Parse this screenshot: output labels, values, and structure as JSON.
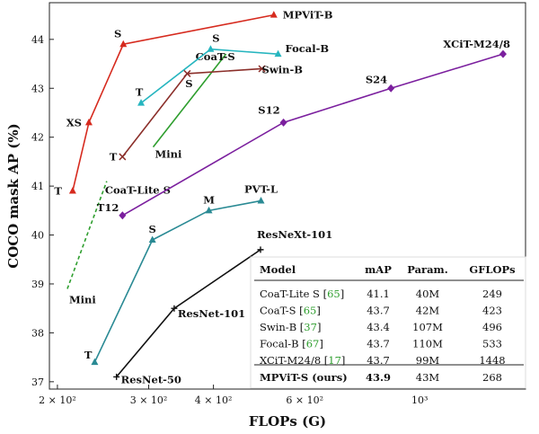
{
  "chart_data": {
    "type": "line",
    "xlabel": "FLOPs (G)",
    "ylabel": "COCO mask AP (%)",
    "xscale": "log",
    "xlim": [
      193,
      1600
    ],
    "ylim": [
      36.85,
      44.75
    ],
    "x_ticks": [
      {
        "value": 200,
        "label": "2 × 10²"
      },
      {
        "value": 300,
        "label": "3 × 10²"
      },
      {
        "value": 400,
        "label": "4 × 10²"
      },
      {
        "value": 600,
        "label": "6 × 10²"
      },
      {
        "value": 1000,
        "label": "10³"
      }
    ],
    "y_ticks": [
      37,
      38,
      39,
      40,
      41,
      42,
      43,
      44
    ],
    "series": [
      {
        "name": "MPViT",
        "color": "#d62a1e",
        "marker": "triangle",
        "dashed": false,
        "points": [
          {
            "x": 214,
            "y": 40.9,
            "label": "T"
          },
          {
            "x": 230,
            "y": 42.3,
            "label": "XS"
          },
          {
            "x": 268,
            "y": 43.9,
            "label": "S"
          },
          {
            "x": 523,
            "y": 44.5,
            "label": "MPViT-B"
          }
        ]
      },
      {
        "name": "CoaT-Lite S",
        "color": "#2e9e2e",
        "marker": "none",
        "dashed": true,
        "points": [
          {
            "x": 209,
            "y": 38.9,
            "label": "Mini"
          },
          {
            "x": 249,
            "y": 41.1,
            "label": "CoaT-Lite S"
          }
        ]
      },
      {
        "name": "CoaT-S",
        "color": "#2e9e2e",
        "marker": "none",
        "dashed": false,
        "points": [
          {
            "x": 306,
            "y": 41.8,
            "label": "Mini"
          },
          {
            "x": 423,
            "y": 43.7,
            "label": "CoaT-S"
          }
        ]
      },
      {
        "name": "Focal-B",
        "color": "#26b5bf",
        "marker": "triangle",
        "dashed": false,
        "points": [
          {
            "x": 290,
            "y": 42.7,
            "label": "T"
          },
          {
            "x": 395,
            "y": 43.8,
            "label": "S"
          },
          {
            "x": 533,
            "y": 43.7,
            "label": "Focal-B"
          }
        ]
      },
      {
        "name": "Swin-B",
        "color": "#8b2f2a",
        "marker": "x",
        "dashed": false,
        "points": [
          {
            "x": 267,
            "y": 41.6,
            "label": "T"
          },
          {
            "x": 356,
            "y": 43.3,
            "label": "S"
          },
          {
            "x": 496,
            "y": 43.4,
            "label": "Swin-B"
          }
        ]
      },
      {
        "name": "XCiT-M24/8",
        "color": "#7b1f9e",
        "marker": "diamond",
        "dashed": false,
        "points": [
          {
            "x": 267,
            "y": 40.4,
            "label": "T12"
          },
          {
            "x": 546,
            "y": 42.3,
            "label": "S12"
          },
          {
            "x": 880,
            "y": 43.0,
            "label": "S24"
          },
          {
            "x": 1448,
            "y": 43.7,
            "label": "XCiT-M24/8"
          }
        ]
      },
      {
        "name": "PVT-L",
        "color": "#2a8a94",
        "marker": "triangle",
        "dashed": false,
        "points": [
          {
            "x": 236,
            "y": 37.4,
            "label": "T"
          },
          {
            "x": 305,
            "y": 39.9,
            "label": "S"
          },
          {
            "x": 392,
            "y": 40.5,
            "label": "M"
          },
          {
            "x": 494,
            "y": 40.7,
            "label": "PVT-L"
          }
        ]
      },
      {
        "name": "ResNeXt",
        "color": "#111111",
        "marker": "plus",
        "dashed": false,
        "points": [
          {
            "x": 260,
            "y": 37.1,
            "label": "ResNet-50"
          },
          {
            "x": 336,
            "y": 38.5,
            "label": "ResNet-101"
          },
          {
            "x": 493,
            "y": 39.7,
            "label": "ResNeXt-101"
          }
        ]
      }
    ],
    "table": {
      "headers": [
        "Model",
        "mAP",
        "Param.",
        "GFLOPs"
      ],
      "rows": [
        {
          "model": "CoaT-Lite S",
          "ref": "65",
          "map": "41.1",
          "param": "40M",
          "gflops": "249"
        },
        {
          "model": "CoaT-S",
          "ref": "65",
          "map": "43.7",
          "param": "42M",
          "gflops": "423"
        },
        {
          "model": "Swin-B",
          "ref": "37",
          "map": "43.4",
          "param": "107M",
          "gflops": "496"
        },
        {
          "model": "Focal-B",
          "ref": "67",
          "map": "43.7",
          "param": "110M",
          "gflops": "533"
        },
        {
          "model": "XCiT-M24/8",
          "ref": "17",
          "map": "43.7",
          "param": "99M",
          "gflops": "1448"
        }
      ],
      "highlight": {
        "model": "MPViT-S (ours)",
        "map": "43.9",
        "param": "43M",
        "gflops": "268"
      }
    },
    "grid": false,
    "legend": "none"
  }
}
